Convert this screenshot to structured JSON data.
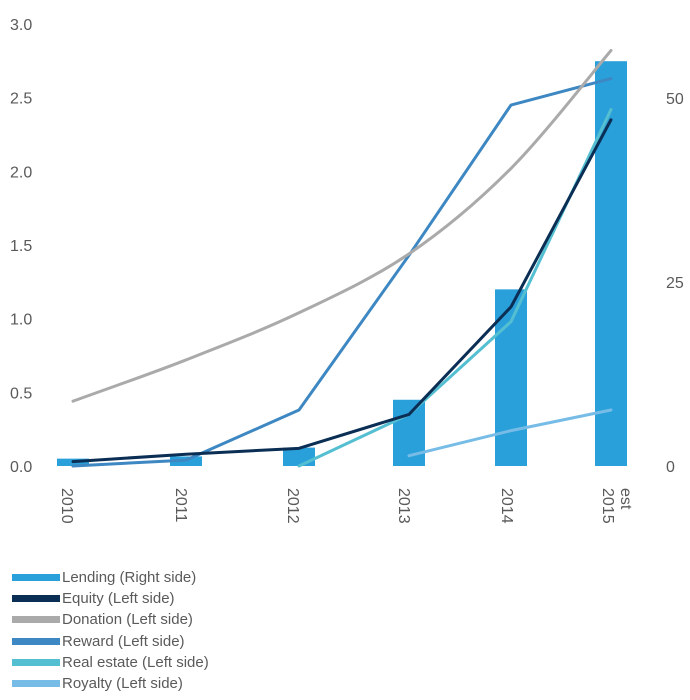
{
  "chart_data": {
    "type": "bar",
    "categories": [
      "2010",
      "2011",
      "2012",
      "2013",
      "2014",
      "2015\nest"
    ],
    "y_left": {
      "ticks": [
        "3.0",
        "2.5",
        "2.0",
        "1.5",
        "1.0",
        "0.5",
        "0.0"
      ],
      "range": [
        0,
        3.0
      ]
    },
    "y_right": {
      "ticks": [
        "50",
        "25",
        "0"
      ],
      "range": [
        0,
        50
      ]
    },
    "bars": {
      "name": "Lending (Right side)",
      "axis": "right",
      "color": "#2aa0da",
      "values": [
        1.0,
        1.3,
        2.5,
        9.0,
        24.0,
        55.0
      ]
    },
    "series": [
      {
        "name": "Equity (Left side)",
        "axis": "left",
        "color": "#0b2e55",
        "points": [
          [
            0,
            0.03
          ],
          [
            1,
            0.08
          ],
          [
            2,
            0.12
          ],
          [
            3,
            0.35
          ],
          [
            4,
            1.08
          ],
          [
            5,
            2.35
          ]
        ]
      },
      {
        "name": "Donation (Left side)",
        "axis": "left",
        "color": "#aaaaaa",
        "points": [
          [
            0,
            0.44
          ],
          [
            1,
            0.72
          ],
          [
            2,
            1.04
          ],
          [
            3,
            1.44
          ],
          [
            4,
            2.02
          ],
          [
            5,
            2.82
          ]
        ],
        "smooth": true
      },
      {
        "name": "Reward (Left side)",
        "axis": "left",
        "color": "#3d87c2",
        "points": [
          [
            0,
            0.0
          ],
          [
            1,
            0.04
          ],
          [
            2,
            0.38
          ],
          [
            3,
            1.43
          ],
          [
            4,
            2.45
          ],
          [
            5,
            2.63
          ]
        ]
      },
      {
        "name": "Real estate (Left side)",
        "axis": "left",
        "color": "#55bfd2",
        "points": [
          [
            2,
            0.0
          ],
          [
            3,
            0.35
          ],
          [
            4,
            0.98
          ],
          [
            5,
            2.42
          ]
        ]
      },
      {
        "name": "Royalty (Left side)",
        "axis": "left",
        "color": "#76bce6",
        "points": [
          [
            3,
            0.07
          ],
          [
            4,
            0.24
          ],
          [
            5,
            0.38
          ]
        ]
      }
    ],
    "legend": [
      {
        "label": "Lending (Right side)",
        "color": "#2aa0da"
      },
      {
        "label": "Equity (Left side)",
        "color": "#0b2e55"
      },
      {
        "label": "Donation (Left side)",
        "color": "#aaaaaa"
      },
      {
        "label": "Reward (Left side)",
        "color": "#3d87c2"
      },
      {
        "label": "Real estate (Left side)",
        "color": "#55bfd2"
      },
      {
        "label": "Royalty (Left side)",
        "color": "#76bce6"
      }
    ],
    "legend_position": "bottom-left",
    "grid": false
  }
}
